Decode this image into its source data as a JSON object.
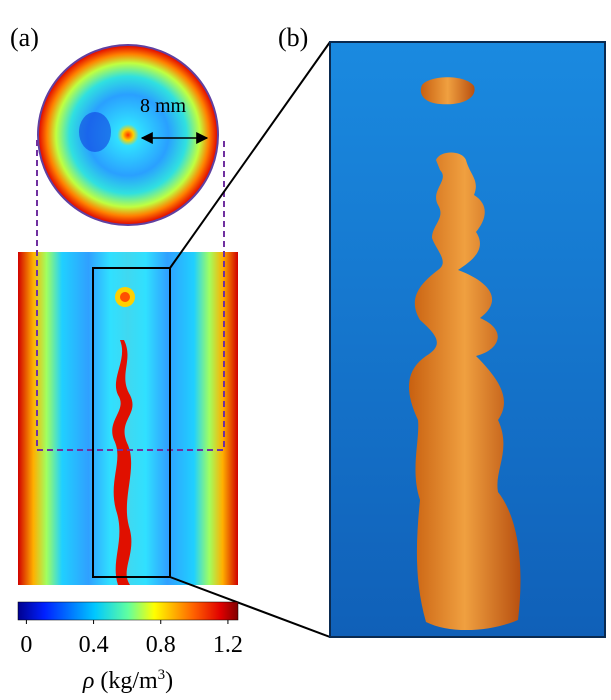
{
  "panels": {
    "a": "(a)",
    "b": "(b)"
  },
  "annotation": "8 mm",
  "colorbar": {
    "lim": [
      -0.05,
      1.26
    ],
    "ticks": [
      0,
      0.4,
      0.8,
      1.2
    ],
    "label": {
      "symbol": "ρ",
      "unit": "(kg/m",
      "exponent": "3",
      "close": ")"
    }
  }
}
